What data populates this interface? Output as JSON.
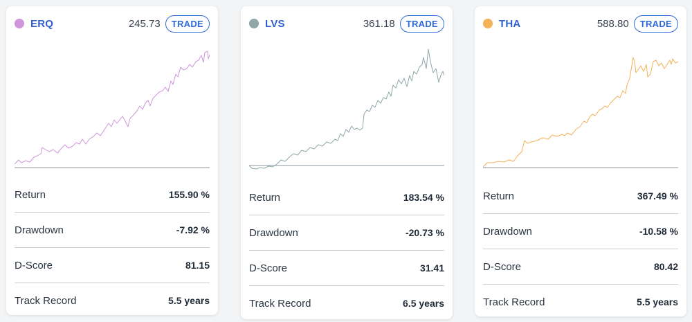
{
  "cards": [
    {
      "ticker": "ERQ",
      "price": "245.73",
      "trade_label": "TRADE",
      "color": "#cf95dc",
      "stats": [
        {
          "label": "Return",
          "value": "155.90 %"
        },
        {
          "label": "Drawdown",
          "value": "-7.92 %"
        },
        {
          "label": "D-Score",
          "value": "81.15"
        },
        {
          "label": "Track Record",
          "value": "5.5 years"
        }
      ]
    },
    {
      "ticker": "LVS",
      "price": "361.18",
      "trade_label": "TRADE",
      "color": "#8fa7a9",
      "stats": [
        {
          "label": "Return",
          "value": "183.54 %"
        },
        {
          "label": "Drawdown",
          "value": "-20.73 %"
        },
        {
          "label": "D-Score",
          "value": "31.41"
        },
        {
          "label": "Track Record",
          "value": "6.5 years"
        }
      ]
    },
    {
      "ticker": "THA",
      "price": "588.80",
      "trade_label": "TRADE",
      "color": "#f4b157",
      "stats": [
        {
          "label": "Return",
          "value": "367.49 %"
        },
        {
          "label": "Drawdown",
          "value": "-10.58 %"
        },
        {
          "label": "D-Score",
          "value": "80.42"
        },
        {
          "label": "Track Record",
          "value": "5.5 years"
        }
      ]
    }
  ]
}
